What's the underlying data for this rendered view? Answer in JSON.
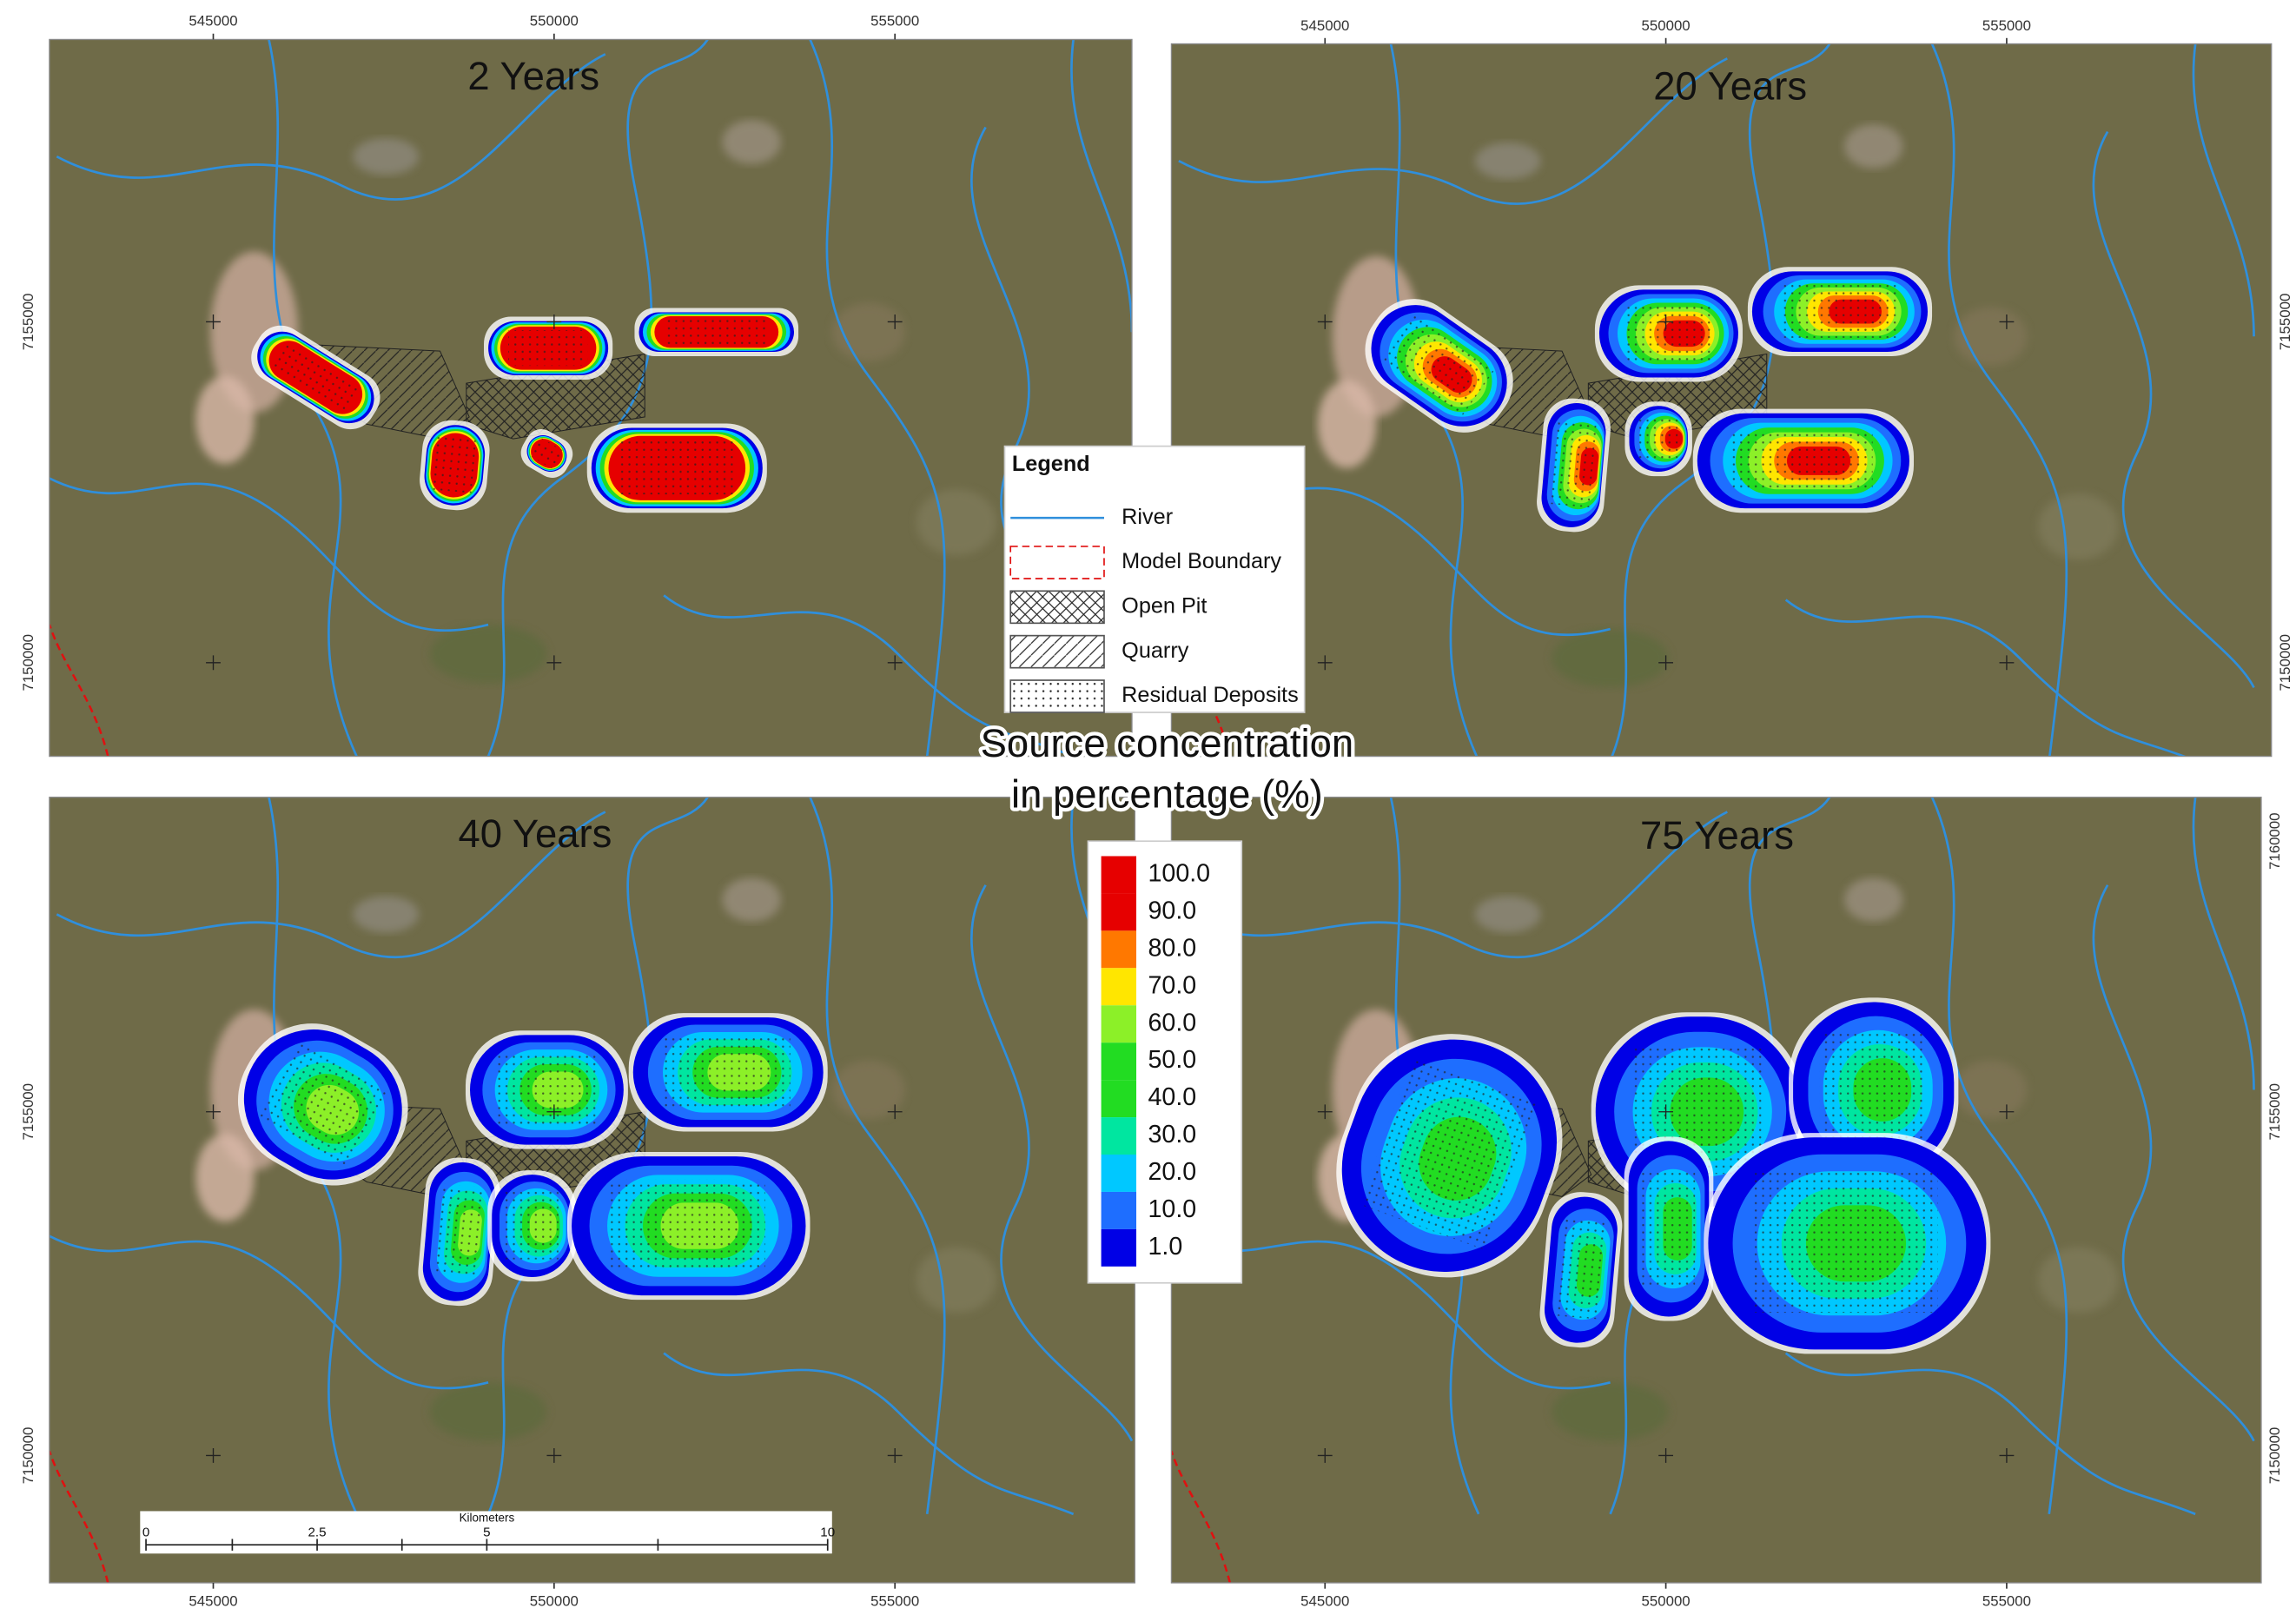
{
  "panels": [
    {
      "title": "2 Years"
    },
    {
      "title": "20 Years"
    },
    {
      "title": "40 Years"
    },
    {
      "title": "75 Years"
    }
  ],
  "coordinates": {
    "x_labels": [
      "545000",
      "550000",
      "555000"
    ],
    "y_labels": [
      "7150000",
      "7155000",
      "7160000"
    ]
  },
  "legend": {
    "title": "Legend",
    "items": [
      "River",
      "Model Boundary",
      "Open Pit",
      "Quarry",
      "Residual Deposits"
    ]
  },
  "color_scale": {
    "title": [
      "Source concentration",
      "in percentage (%)"
    ],
    "labels": [
      "100.0",
      "90.0",
      "80.0",
      "70.0",
      "60.0",
      "50.0",
      "40.0",
      "30.0",
      "20.0",
      "10.0",
      "1.0"
    ]
  },
  "scale_bar": {
    "title": "Kilometers",
    "labels": [
      "0",
      "2.5",
      "5",
      "10"
    ]
  }
}
